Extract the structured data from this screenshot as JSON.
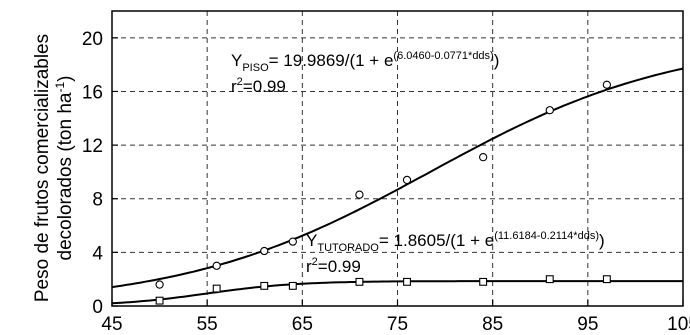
{
  "chart_data": {
    "type": "scatter",
    "title": "",
    "xlabel": "",
    "ylabel_line1": "Peso de frutos comercializables",
    "ylabel_line2_pre": "decolorados (ton ha",
    "ylabel_line2_sup": "-1",
    "ylabel_line2_post": ")",
    "xlim": [
      45,
      105
    ],
    "ylim": [
      0,
      22
    ],
    "xticks": [
      "45",
      "55",
      "65",
      "75",
      "85",
      "95",
      "105"
    ],
    "yticks": [
      "0",
      "4",
      "8",
      "12",
      "16",
      "20"
    ],
    "grid": "dashed",
    "series": [
      {
        "marker": "circle",
        "x": [
          50,
          56,
          61,
          64,
          71,
          76,
          84,
          91,
          97
        ],
        "y": [
          1.6,
          3.0,
          4.1,
          4.8,
          8.3,
          9.4,
          11.1,
          14.6,
          16.5
        ],
        "model": {
          "a": 19.9869,
          "b": 6.046,
          "c": 0.0771
        }
      },
      {
        "marker": "square",
        "x": [
          50,
          56,
          61,
          64,
          71,
          76,
          84,
          91,
          97
        ],
        "y": [
          0.4,
          1.3,
          1.5,
          1.5,
          1.8,
          1.8,
          1.8,
          2.0,
          2.0
        ],
        "model": {
          "a": 1.8605,
          "b": 11.6184,
          "c": 0.2114
        }
      }
    ],
    "annotations": [
      {
        "y_main": "Y",
        "y_sub": "PISO",
        "eq_main": "= 19.9869/(1 + e",
        "eq_sup": "(6.0460-0.0771*dds)",
        "eq_close": ")",
        "r2_main": "r",
        "r2_sup": "2",
        "r2_val": "=0.99"
      },
      {
        "y_main": "Y",
        "y_sub": "TUTORADO",
        "eq_main": "= 1.8605/(1 + e",
        "eq_sup": "(11.6184-0.2114*dds)",
        "eq_close": ")",
        "r2_main": "r",
        "r2_sup": "2",
        "r2_val": "=0.99"
      }
    ]
  }
}
